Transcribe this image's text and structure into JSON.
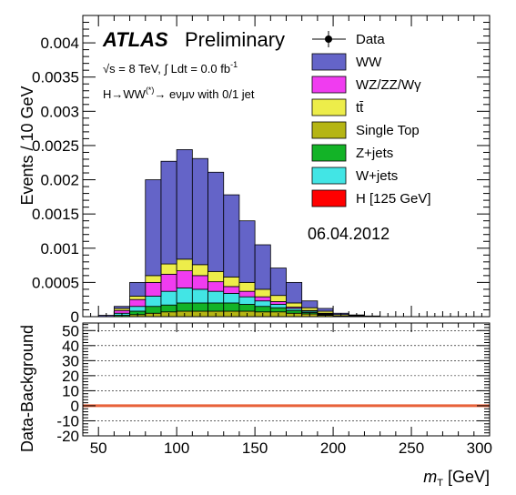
{
  "chart_data": [
    {
      "type": "area",
      "panel": "main",
      "stacked_histogram": true,
      "bin_edges": [
        40,
        50,
        60,
        70,
        80,
        90,
        100,
        110,
        120,
        130,
        140,
        150,
        160,
        170,
        180,
        190,
        200,
        210,
        220,
        230,
        240,
        250,
        260,
        270,
        280,
        290,
        300
      ],
      "series": [
        {
          "name": "Single Top",
          "color": "#b5b514",
          "values": [
            0,
            0,
            0,
            3e-05,
            5e-05,
            7e-05,
            8e-05,
            8e-05,
            8e-05,
            8e-05,
            8e-05,
            7e-05,
            7e-05,
            5e-05,
            4e-05,
            2e-05,
            1e-05,
            5e-06,
            0,
            0,
            0,
            0,
            0,
            0,
            0,
            0
          ]
        },
        {
          "name": "Z+jets",
          "color": "#13b327",
          "values": [
            0,
            0,
            2e-05,
            5e-05,
            0.0001,
            0.0001,
            0.00012,
            0.00012,
            0.00012,
            0.00012,
            0.0001,
            8e-05,
            6e-05,
            4e-05,
            2e-05,
            1e-05,
            0,
            0,
            0,
            0,
            0,
            0,
            0,
            0,
            0,
            0
          ]
        },
        {
          "name": "W+jets",
          "color": "#42e5e5",
          "values": [
            0,
            0,
            3e-05,
            7e-05,
            0.00015,
            0.0002,
            0.00022,
            0.0002,
            0.00017,
            0.00014,
            0.00011,
            8e-05,
            5e-05,
            3e-05,
            2e-05,
            1e-05,
            0,
            0,
            0,
            0,
            0,
            0,
            0,
            0,
            0,
            0
          ]
        },
        {
          "name": "WZ/ZZ/Wγ",
          "color": "#f03cf0",
          "values": [
            0,
            0,
            4e-05,
            0.0001,
            0.0002,
            0.00025,
            0.00025,
            0.0002,
            0.00014,
            0.0001,
            8e-05,
            6e-05,
            4e-05,
            2e-05,
            1e-05,
            1e-05,
            0,
            0,
            0,
            0,
            0,
            0,
            0,
            0,
            0,
            0
          ]
        },
        {
          "name": "tt̄",
          "color": "#eded4a",
          "values": [
            0,
            0,
            3e-05,
            5e-05,
            0.0001,
            0.00015,
            0.00017,
            0.00016,
            0.00015,
            0.00014,
            0.00013,
            0.00011,
            9e-05,
            6e-05,
            4e-05,
            3e-05,
            2e-05,
            1e-05,
            5e-06,
            0,
            0,
            0,
            0,
            0,
            0,
            0
          ]
        },
        {
          "name": "WW",
          "color": "#6464c8",
          "values": [
            0,
            2e-05,
            3e-05,
            0.0002,
            0.0014,
            0.0015,
            0.0016,
            0.00155,
            0.00145,
            0.0012,
            0.0009,
            0.00065,
            0.0004,
            0.0003,
            0.0001,
            4e-05,
            2e-05,
            1e-05,
            5e-06,
            0,
            0,
            0,
            0,
            0,
            0,
            0
          ]
        },
        {
          "name": "H [125 GeV]",
          "color": "#ff0000",
          "values": [
            0,
            0,
            0,
            0,
            0,
            0,
            0,
            0,
            0,
            0,
            0,
            0,
            0,
            0,
            0,
            0,
            0,
            0,
            0,
            0,
            0,
            0,
            0,
            0,
            0,
            0
          ]
        }
      ],
      "legend": [
        {
          "name": "Data",
          "style": "marker",
          "color": "#000000"
        },
        {
          "name": "WW",
          "style": "box",
          "color": "#6464c8"
        },
        {
          "name": "WZ/ZZ/Wγ",
          "style": "box",
          "color": "#f03cf0"
        },
        {
          "name": "tt̄",
          "style": "box",
          "color": "#eded4a"
        },
        {
          "name": "Single Top",
          "style": "box",
          "color": "#b5b514"
        },
        {
          "name": "Z+jets",
          "style": "box",
          "color": "#13b327"
        },
        {
          "name": "W+jets",
          "style": "box",
          "color": "#42e5e5"
        },
        {
          "name": "H [125 GeV]",
          "style": "box",
          "color": "#ff0000"
        }
      ],
      "legend_placement": "top-right",
      "xlim": [
        40,
        300
      ],
      "ylim": [
        0,
        0.0044
      ],
      "xticks": [
        50,
        100,
        150,
        200,
        250,
        300
      ],
      "yticks": [
        {
          "value": 0,
          "label": "0"
        },
        {
          "value": 0.0005,
          "label": "0.0005"
        },
        {
          "value": 0.001,
          "label": "0.001"
        },
        {
          "value": 0.0015,
          "label": "0.0015"
        },
        {
          "value": 0.002,
          "label": "0.002"
        },
        {
          "value": 0.0025,
          "label": "0.0025"
        },
        {
          "value": 0.003,
          "label": "0.003"
        },
        {
          "value": 0.0035,
          "label": "0.0035"
        },
        {
          "value": 0.004,
          "label": "0.004"
        }
      ],
      "ylabel": "Events / 10 GeV",
      "annotations": {
        "experiment": "ATLAS",
        "status": "Preliminary",
        "energy_text": "√s = 8 TeV, ∫ Ldt =  0.0 fb",
        "energy_superscript": "-1",
        "channel_text": "H→WW",
        "channel_superscript": "(*)",
        "channel_suffix": "→ eνμν with 0/1 jet",
        "date": "06.04.2012"
      }
    },
    {
      "type": "line",
      "panel": "ratio",
      "series": [
        {
          "name": "Data-Background",
          "color": "#e8623a",
          "x": [
            40,
            300
          ],
          "y": [
            0,
            0
          ]
        }
      ],
      "xlim": [
        40,
        300
      ],
      "ylim": [
        -20,
        55
      ],
      "xticks": [
        50,
        100,
        150,
        200,
        250,
        300
      ],
      "yticks": [
        -20,
        -10,
        0,
        10,
        20,
        30,
        40,
        50
      ],
      "grid": true,
      "ylabel": "Data-Background",
      "xlabel_main": "m",
      "xlabel_sub": "T",
      "xlabel_unit": " [GeV]"
    }
  ]
}
